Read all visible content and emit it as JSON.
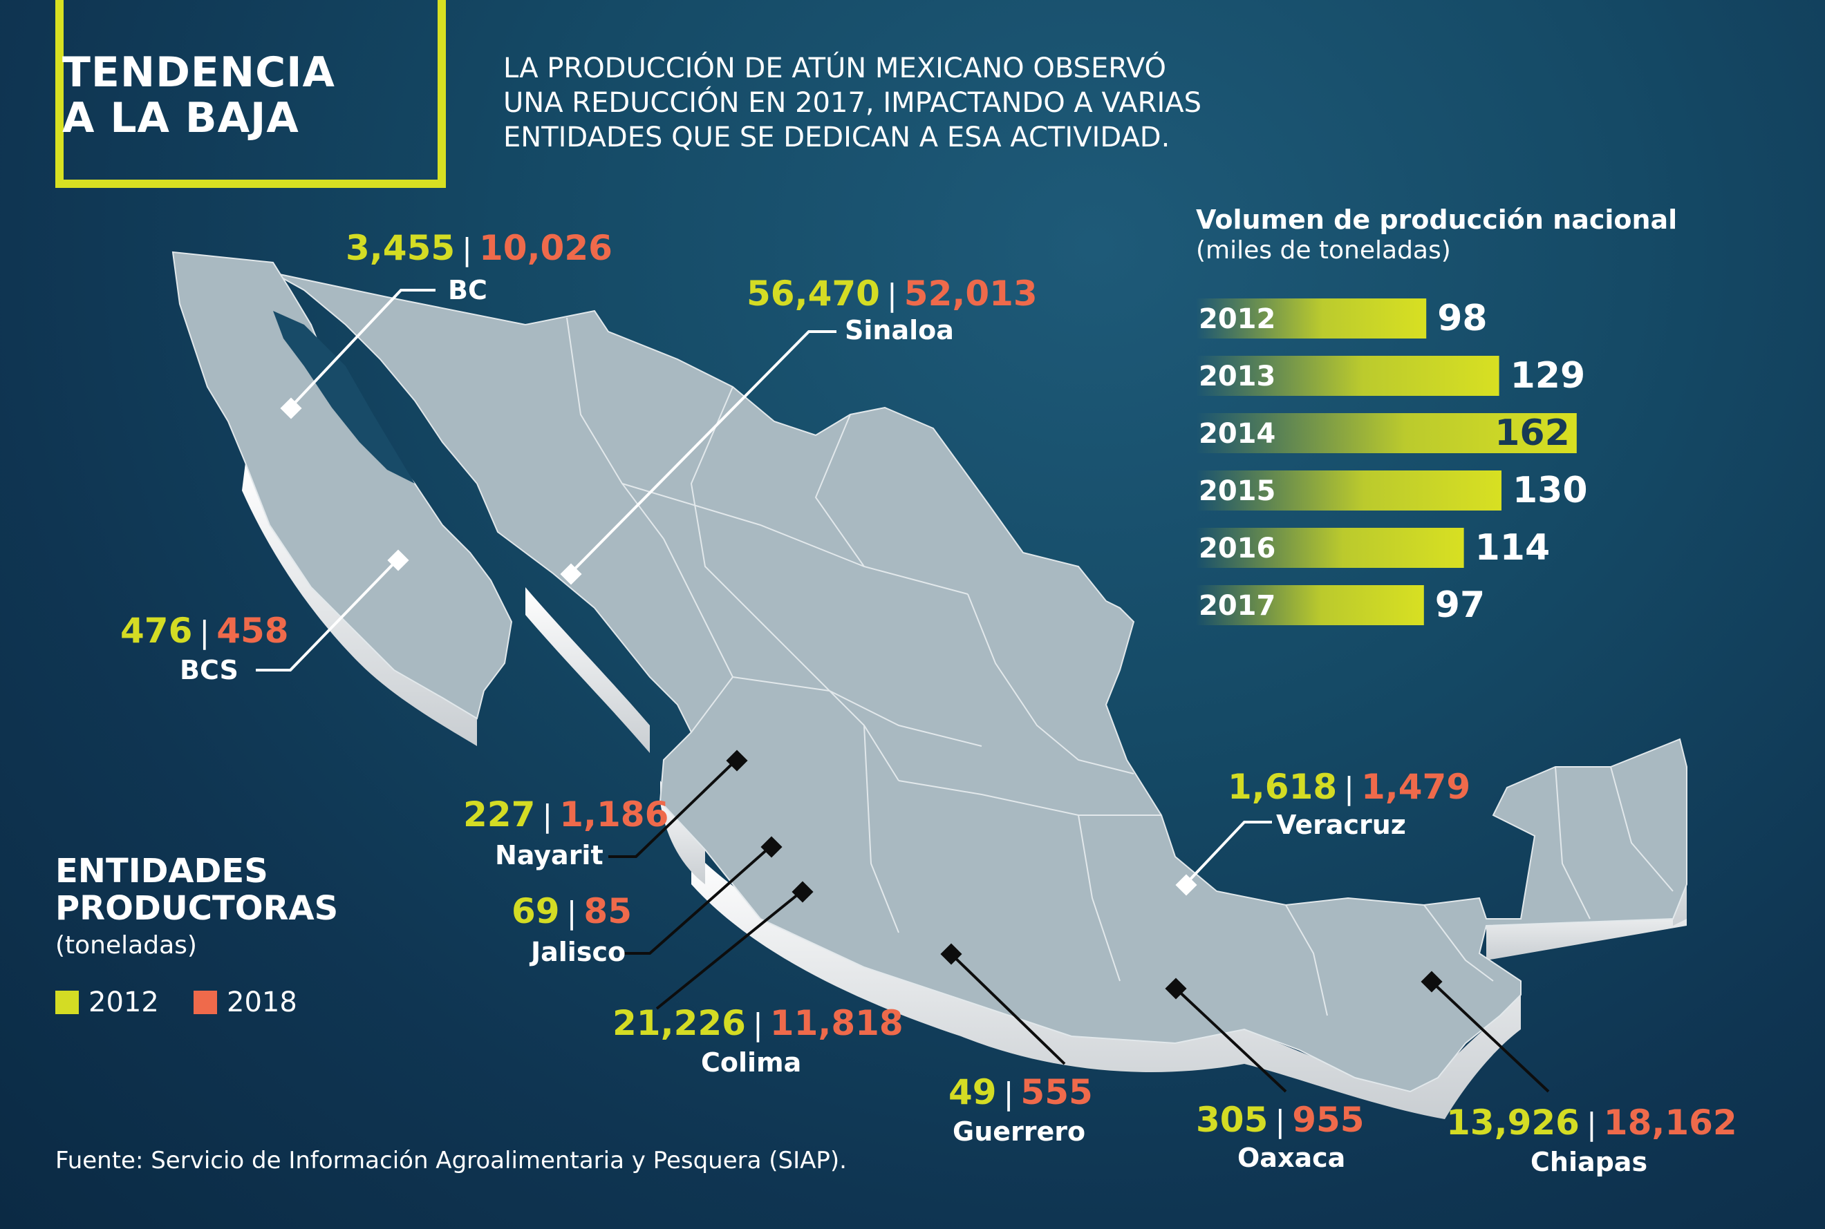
{
  "title": {
    "line1": "TENDENCIA",
    "line2": "A LA BAJA"
  },
  "subtitle": [
    "LA PRODUCCIÓN DE ATÚN MEXICANO OBSERVÓ",
    "UNA REDUCCIÓN EN 2017, IMPACTANDO A VARIAS",
    "ENTIDADES QUE SE DEDICAN A ESA ACTIVIDAD."
  ],
  "colors": {
    "accent": "#d8e022",
    "v2012": "#d4dc24",
    "v2018": "#ef6a4b",
    "map": "#a9b9c1"
  },
  "states": [
    {
      "name": "BC",
      "v2012": "3,455",
      "v2018": "10,026"
    },
    {
      "name": "Sinaloa",
      "v2012": "56,470",
      "v2018": "52,013"
    },
    {
      "name": "BCS",
      "v2012": "476",
      "v2018": "458"
    },
    {
      "name": "Nayarit",
      "v2012": "227",
      "v2018": "1,186"
    },
    {
      "name": "Jalisco",
      "v2012": "69",
      "v2018": "85"
    },
    {
      "name": "Colima",
      "v2012": "21,226",
      "v2018": "11,818"
    },
    {
      "name": "Guerrero",
      "v2012": "49",
      "v2018": "555"
    },
    {
      "name": "Oaxaca",
      "v2012": "305",
      "v2018": "955"
    },
    {
      "name": "Chiapas",
      "v2012": "13,926",
      "v2018": "18,162"
    },
    {
      "name": "Veracruz",
      "v2012": "1,618",
      "v2018": "1,479"
    }
  ],
  "chart_data": {
    "type": "bar",
    "title": "Volumen de producción nacional",
    "subtitle": "(miles de toneladas)",
    "categories": [
      "2012",
      "2013",
      "2014",
      "2015",
      "2016",
      "2017"
    ],
    "values": [
      98,
      129,
      162,
      130,
      114,
      97
    ],
    "orientation": "horizontal"
  },
  "legend": {
    "title_line1": "ENTIDADES",
    "title_line2": "PRODUCTORAS",
    "subtitle": "(toneladas)",
    "items": [
      {
        "label": "2012",
        "color": "#d4dc24"
      },
      {
        "label": "2018",
        "color": "#ef6a4b"
      }
    ]
  },
  "source": "Fuente: Servicio de Información Agroalimentaria y Pesquera (SIAP)."
}
